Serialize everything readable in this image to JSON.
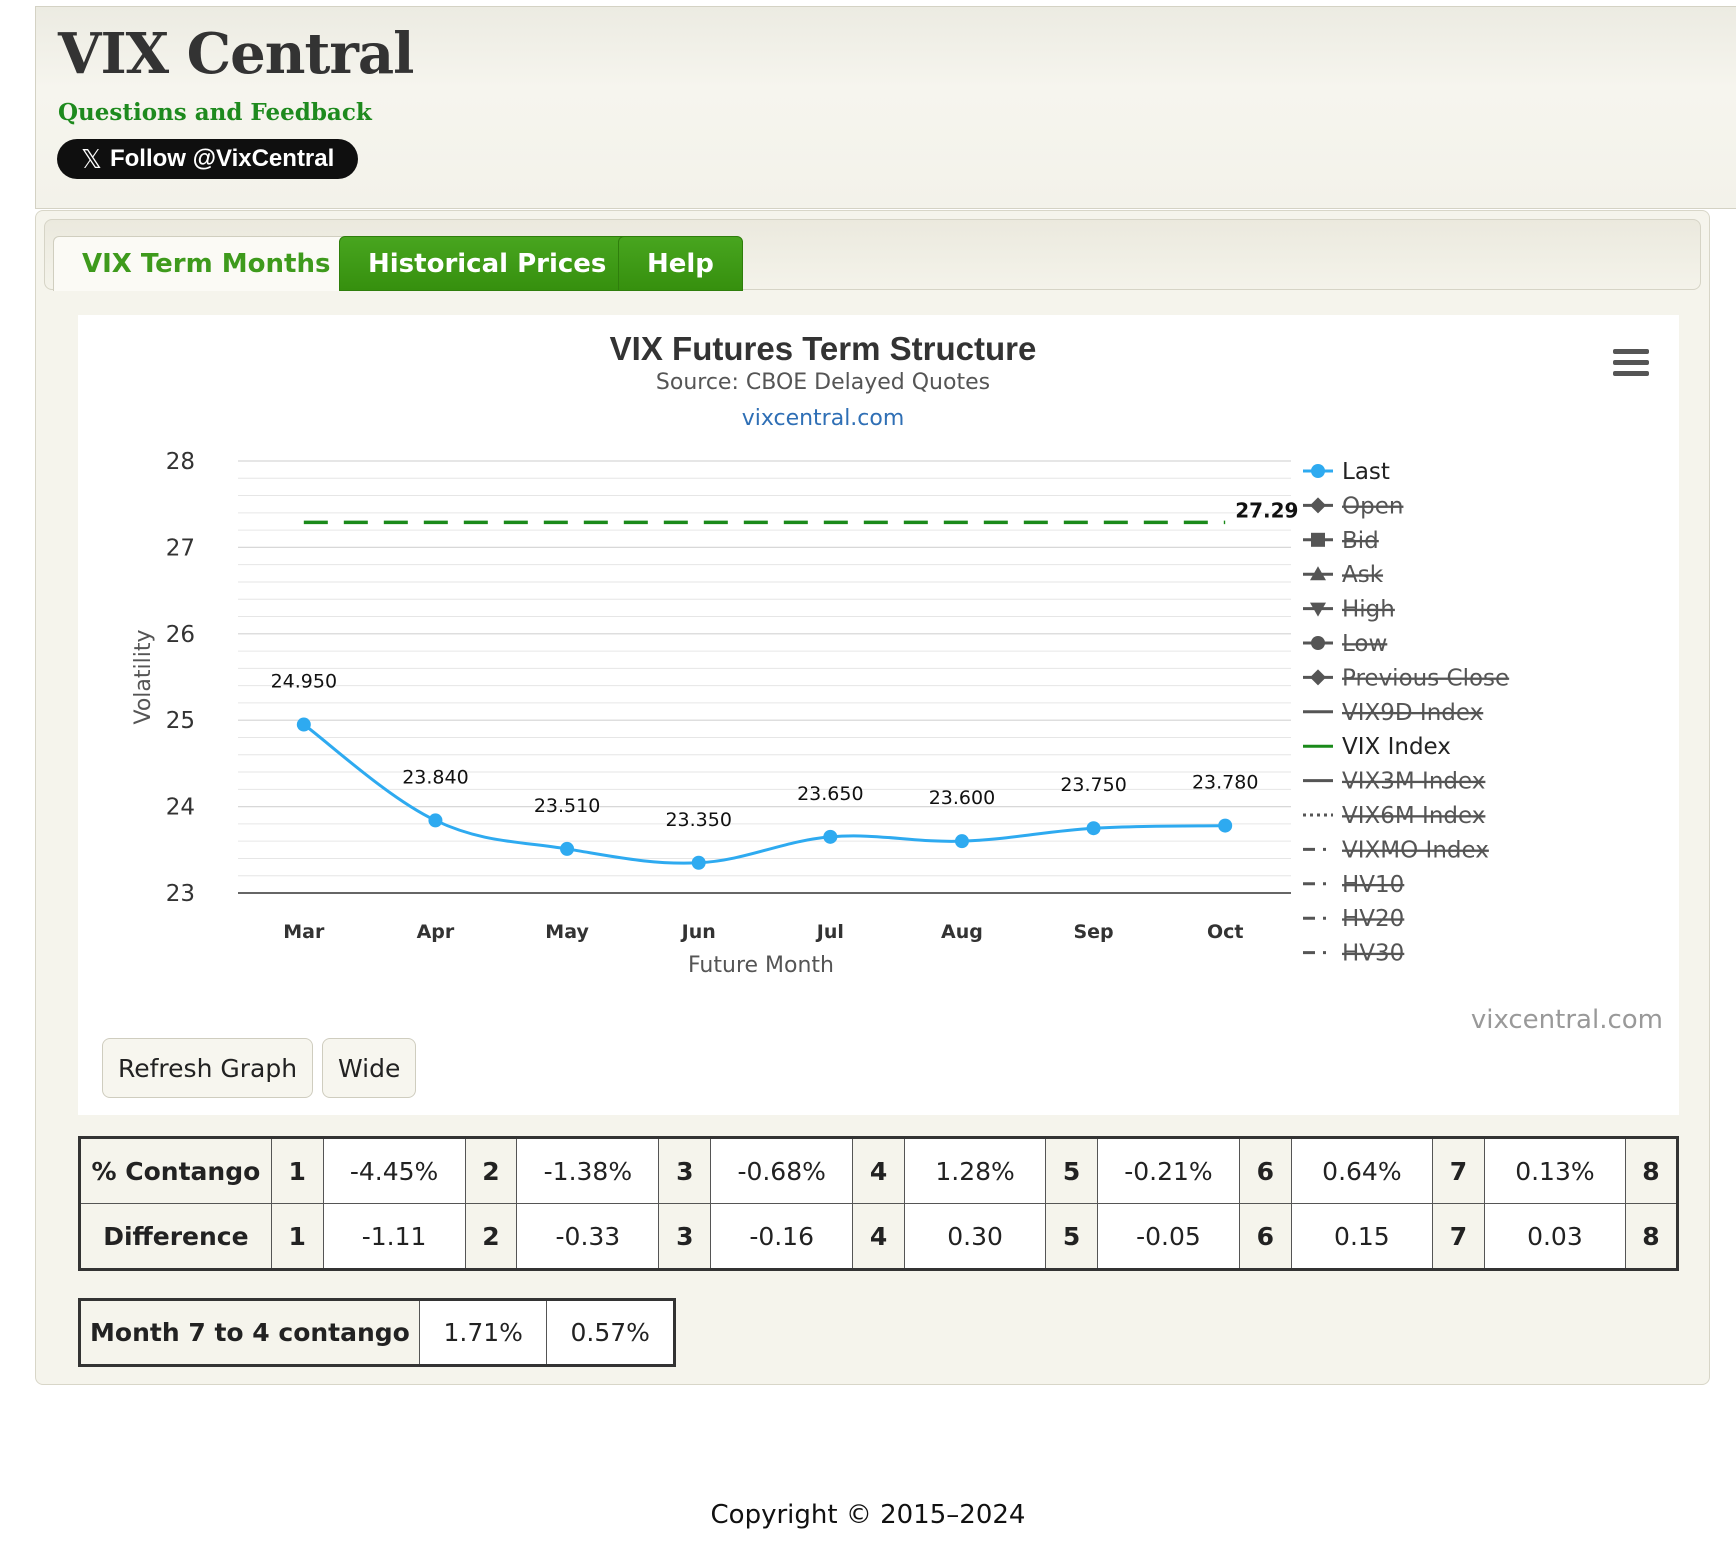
{
  "header": {
    "title": "VIX Central",
    "feedback_label": "Questions and Feedback",
    "follow_label": "Follow @VixCentral"
  },
  "tabs": [
    {
      "label": "VIX Term Months",
      "active": true
    },
    {
      "label": "Historical Prices",
      "active": false
    },
    {
      "label": "Help",
      "active": false
    }
  ],
  "chart_data": {
    "type": "line",
    "title": "VIX Futures Term Structure",
    "subtitle": "Source: CBOE Delayed Quotes",
    "subtitle_link": "vixcentral.com",
    "credits": "vixcentral.com",
    "xlabel": "Future Month",
    "ylabel": "Volatility",
    "categories": [
      "Mar",
      "Apr",
      "May",
      "Jun",
      "Jul",
      "Aug",
      "Sep",
      "Oct"
    ],
    "ylim": [
      23,
      28
    ],
    "yticks": [
      23,
      24,
      25,
      26,
      27,
      28
    ],
    "series": [
      {
        "name": "Last",
        "values": [
          24.95,
          23.84,
          23.51,
          23.35,
          23.65,
          23.6,
          23.75,
          23.78
        ],
        "labels": [
          "24.950",
          "23.840",
          "23.510",
          "23.350",
          "23.650",
          "23.600",
          "23.750",
          "23.780"
        ],
        "color": "#2eaaf0",
        "visible": true
      },
      {
        "name": "VIX Index",
        "value": 27.29,
        "label": "27.29",
        "color": "#1a8a1a",
        "dashed": true,
        "visible": true
      }
    ],
    "legend": {
      "placement": "right",
      "items": [
        {
          "label": "Last",
          "symbol": "circle",
          "visible": true
        },
        {
          "label": "Open",
          "symbol": "diamond",
          "visible": false
        },
        {
          "label": "Bid",
          "symbol": "square",
          "visible": false
        },
        {
          "label": "Ask",
          "symbol": "triangle",
          "visible": false
        },
        {
          "label": "High",
          "symbol": "triangle-down",
          "visible": false
        },
        {
          "label": "Low",
          "symbol": "circle",
          "visible": false
        },
        {
          "label": "Previous Close",
          "symbol": "diamond",
          "visible": false
        },
        {
          "label": "VIX9D Index",
          "symbol": "line",
          "visible": false
        },
        {
          "label": "VIX Index",
          "symbol": "line",
          "visible": true
        },
        {
          "label": "VIX3M Index",
          "symbol": "line",
          "visible": false
        },
        {
          "label": "VIX6M Index",
          "symbol": "dotted",
          "visible": false
        },
        {
          "label": "VIXMO Index",
          "symbol": "dashdot",
          "visible": false
        },
        {
          "label": "HV10",
          "symbol": "dashdot",
          "visible": false
        },
        {
          "label": "HV20",
          "symbol": "dashdot",
          "visible": false
        },
        {
          "label": "HV30",
          "symbol": "dashdot",
          "visible": false
        }
      ]
    }
  },
  "buttons": {
    "refresh": "Refresh Graph",
    "wide": "Wide"
  },
  "contango_table": {
    "rows": [
      {
        "label": "% Contango",
        "cells": [
          [
            "1",
            "-4.45%"
          ],
          [
            "2",
            "-1.38%"
          ],
          [
            "3",
            "-0.68%"
          ],
          [
            "4",
            "1.28%"
          ],
          [
            "5",
            "-0.21%"
          ],
          [
            "6",
            "0.64%"
          ],
          [
            "7",
            "0.13%"
          ]
        ],
        "last": "8"
      },
      {
        "label": "Difference",
        "cells": [
          [
            "1",
            "-1.11"
          ],
          [
            "2",
            "-0.33"
          ],
          [
            "3",
            "-0.16"
          ],
          [
            "4",
            "0.30"
          ],
          [
            "5",
            "-0.05"
          ],
          [
            "6",
            "0.15"
          ],
          [
            "7",
            "0.03"
          ]
        ],
        "last": "8"
      }
    ]
  },
  "month_table": {
    "label": "Month 7 to 4 contango",
    "v1": "1.71%",
    "v2": "0.57%"
  },
  "footer": {
    "copyright": "Copyright © 2015–2024"
  }
}
